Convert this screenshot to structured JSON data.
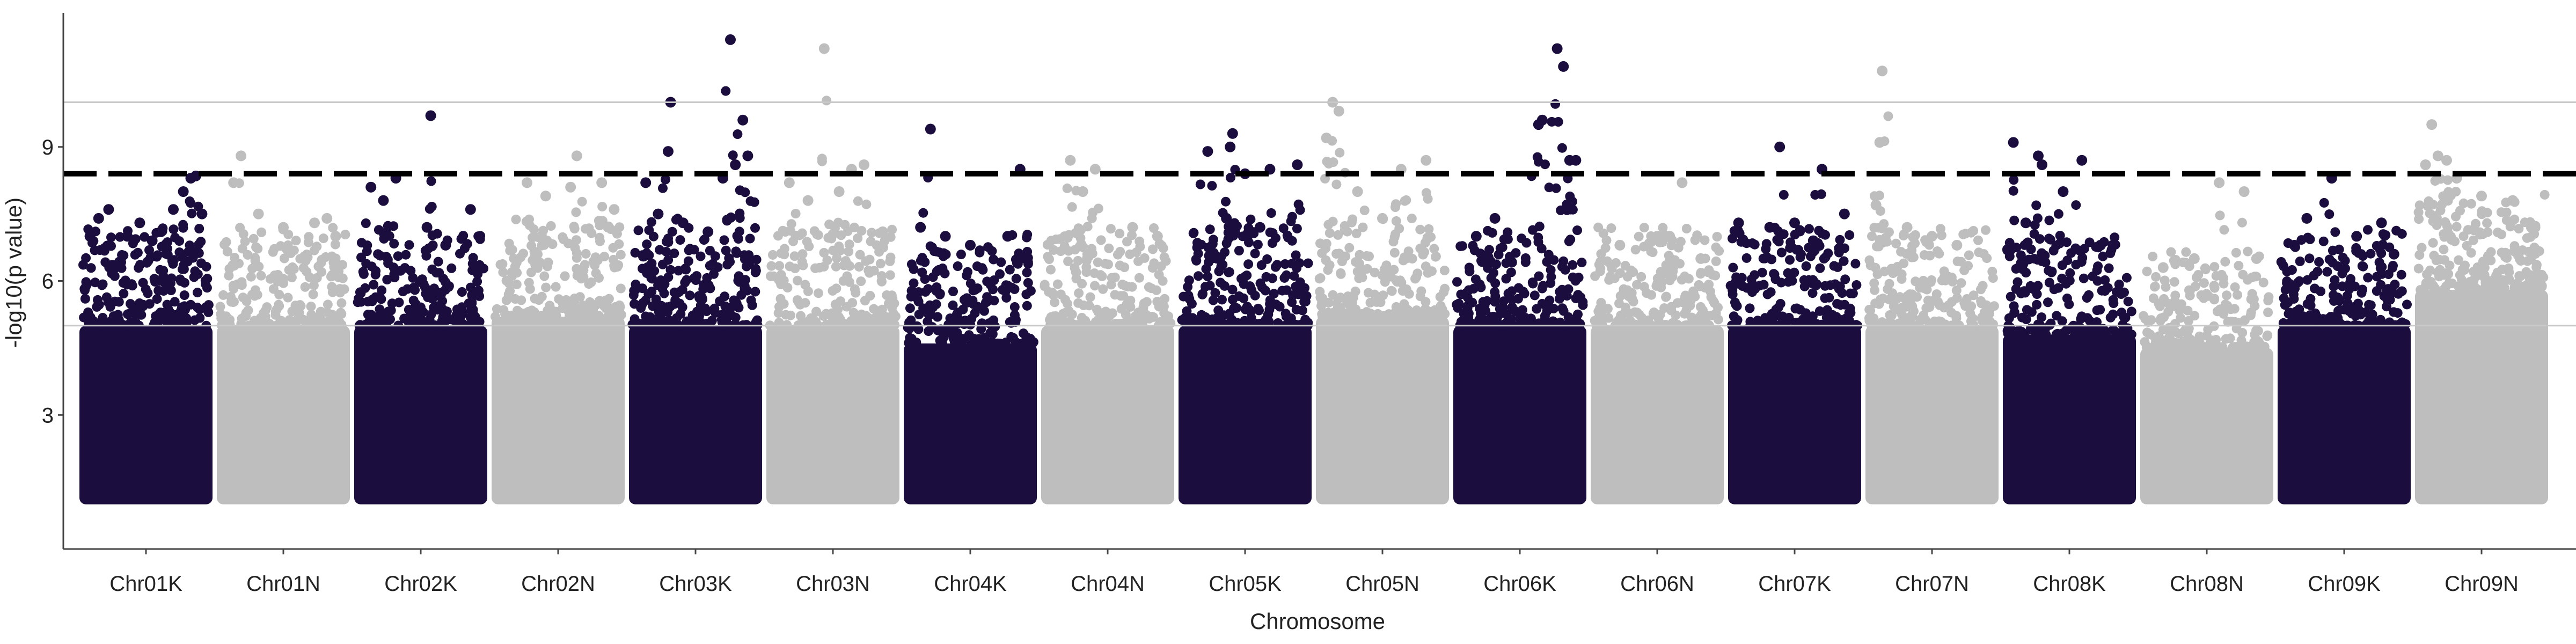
{
  "chart_data": {
    "type": "scatter",
    "title": "",
    "xlabel": "Chromosome",
    "ylabel": "-log10(p value)",
    "categories": [
      "Chr01K",
      "Chr01N",
      "Chr02K",
      "Chr02N",
      "Chr03K",
      "Chr03N",
      "Chr04K",
      "Chr04N",
      "Chr05K",
      "Chr05N",
      "Chr06K",
      "Chr06N",
      "Chr07K",
      "Chr07N",
      "Chr08K",
      "Chr08N",
      "Chr09K",
      "Chr09N"
    ],
    "yticks": [
      3,
      6,
      9
    ],
    "ylim": [
      0,
      12.0
    ],
    "grid": false,
    "colors": {
      "K": "#1b0e3f",
      "N": "#bebebe",
      "threshold": "#000000",
      "ref_line": "#c8c8c8",
      "axis": "#444444"
    },
    "reference_lines": [
      {
        "y": 10.0,
        "style": "solid",
        "color": "#c8c8c8"
      },
      {
        "y": 5.0,
        "style": "solid",
        "color": "#c8c8c8"
      },
      {
        "y": 8.4,
        "style": "dashed",
        "color": "#000000"
      }
    ],
    "series": [
      {
        "chromosome": "Chr01K",
        "color": "#1b0e3f",
        "base_top": 5.0,
        "peaks": [
          [
            0.05,
            7.0
          ],
          [
            0.12,
            7.4
          ],
          [
            0.2,
            7.6
          ],
          [
            0.35,
            7.0
          ],
          [
            0.45,
            7.3
          ],
          [
            0.55,
            6.9
          ],
          [
            0.62,
            7.1
          ],
          [
            0.72,
            7.6
          ],
          [
            0.8,
            8.0
          ],
          [
            0.86,
            8.3
          ],
          [
            0.9,
            8.35
          ],
          [
            0.95,
            7.5
          ]
        ]
      },
      {
        "chromosome": "Chr01N",
        "color": "#bebebe",
        "base_top": 5.0,
        "peaks": [
          [
            0.1,
            8.2
          ],
          [
            0.16,
            8.8
          ],
          [
            0.3,
            7.5
          ],
          [
            0.5,
            7.2
          ],
          [
            0.75,
            7.3
          ],
          [
            0.85,
            7.4
          ],
          [
            0.92,
            7.0
          ]
        ]
      },
      {
        "chromosome": "Chr02K",
        "color": "#1b0e3f",
        "base_top": 5.0,
        "peaks": [
          [
            0.1,
            8.1
          ],
          [
            0.2,
            7.8
          ],
          [
            0.3,
            8.3
          ],
          [
            0.55,
            7.2
          ],
          [
            0.58,
            9.7
          ],
          [
            0.7,
            6.8
          ],
          [
            0.9,
            7.6
          ]
        ]
      },
      {
        "chromosome": "Chr02N",
        "color": "#bebebe",
        "base_top": 5.2,
        "peaks": [
          [
            0.25,
            8.2
          ],
          [
            0.4,
            7.9
          ],
          [
            0.6,
            8.1
          ],
          [
            0.65,
            8.8
          ],
          [
            0.85,
            8.2
          ],
          [
            0.95,
            7.6
          ]
        ]
      },
      {
        "chromosome": "Chr03K",
        "color": "#1b0e3f",
        "base_top": 5.0,
        "peaks": [
          [
            0.1,
            8.2
          ],
          [
            0.2,
            7.5
          ],
          [
            0.28,
            8.9
          ],
          [
            0.3,
            10.0
          ],
          [
            0.4,
            7.3
          ],
          [
            0.6,
            7.1
          ],
          [
            0.72,
            8.3
          ],
          [
            0.78,
            11.4
          ],
          [
            0.82,
            8.6
          ],
          [
            0.88,
            9.6
          ],
          [
            0.92,
            8.8
          ]
        ]
      },
      {
        "chromosome": "Chr03N",
        "color": "#bebebe",
        "base_top": 5.0,
        "peaks": [
          [
            0.15,
            8.2
          ],
          [
            0.3,
            7.8
          ],
          [
            0.43,
            11.2
          ],
          [
            0.55,
            8.0
          ],
          [
            0.65,
            8.5
          ],
          [
            0.75,
            8.6
          ],
          [
            0.9,
            7.1
          ]
        ]
      },
      {
        "chromosome": "Chr04K",
        "color": "#1b0e3f",
        "base_top": 4.6,
        "peaks": [
          [
            0.1,
            7.2
          ],
          [
            0.18,
            9.4
          ],
          [
            0.3,
            7.0
          ],
          [
            0.5,
            6.8
          ],
          [
            0.8,
            7.0
          ],
          [
            0.9,
            8.5
          ]
        ]
      },
      {
        "chromosome": "Chr04N",
        "color": "#bebebe",
        "base_top": 5.0,
        "peaks": [
          [
            0.2,
            8.7
          ],
          [
            0.3,
            8.0
          ],
          [
            0.4,
            8.5
          ],
          [
            0.7,
            7.2
          ],
          [
            0.9,
            7.0
          ]
        ]
      },
      {
        "chromosome": "Chr05K",
        "color": "#1b0e3f",
        "base_top": 5.0,
        "peaks": [
          [
            0.2,
            8.9
          ],
          [
            0.35,
            7.4
          ],
          [
            0.38,
            9.0
          ],
          [
            0.4,
            9.3
          ],
          [
            0.5,
            8.4
          ],
          [
            0.62,
            7.2
          ],
          [
            0.7,
            8.5
          ],
          [
            0.92,
            8.6
          ]
        ]
      },
      {
        "chromosome": "Chr05N",
        "color": "#bebebe",
        "base_top": 5.2,
        "peaks": [
          [
            0.05,
            9.2
          ],
          [
            0.1,
            10.0
          ],
          [
            0.15,
            9.8
          ],
          [
            0.3,
            8.0
          ],
          [
            0.5,
            7.4
          ],
          [
            0.65,
            8.5
          ],
          [
            0.85,
            8.7
          ]
        ]
      },
      {
        "chromosome": "Chr06K",
        "color": "#1b0e3f",
        "base_top": 5.0,
        "peaks": [
          [
            0.15,
            7.0
          ],
          [
            0.3,
            7.4
          ],
          [
            0.65,
            9.5
          ],
          [
            0.68,
            9.6
          ],
          [
            0.8,
            11.2
          ],
          [
            0.85,
            10.8
          ],
          [
            0.9,
            8.7
          ],
          [
            0.95,
            8.7
          ]
        ]
      },
      {
        "chromosome": "Chr06N",
        "color": "#bebebe",
        "base_top": 5.0,
        "peaks": [
          [
            0.2,
            6.8
          ],
          [
            0.5,
            7.0
          ],
          [
            0.6,
            7.0
          ],
          [
            0.7,
            8.2
          ],
          [
            0.85,
            6.5
          ]
        ]
      },
      {
        "chromosome": "Chr07K",
        "color": "#1b0e3f",
        "base_top": 5.0,
        "peaks": [
          [
            0.05,
            7.3
          ],
          [
            0.3,
            7.2
          ],
          [
            0.38,
            9.0
          ],
          [
            0.5,
            7.3
          ],
          [
            0.65,
            6.9
          ],
          [
            0.72,
            8.5
          ],
          [
            0.9,
            7.5
          ]
        ]
      },
      {
        "chromosome": "Chr07N",
        "color": "#bebebe",
        "base_top": 5.0,
        "peaks": [
          [
            0.05,
            7.7
          ],
          [
            0.08,
            9.1
          ],
          [
            0.1,
            10.7
          ],
          [
            0.3,
            7.2
          ],
          [
            0.5,
            7.0
          ],
          [
            0.7,
            6.8
          ]
        ]
      },
      {
        "chromosome": "Chr08K",
        "color": "#1b0e3f",
        "base_top": 4.8,
        "peaks": [
          [
            0.05,
            9.1
          ],
          [
            0.15,
            7.3
          ],
          [
            0.25,
            8.8
          ],
          [
            0.28,
            8.6
          ],
          [
            0.45,
            8.0
          ],
          [
            0.6,
            8.7
          ],
          [
            0.75,
            6.8
          ]
        ]
      },
      {
        "chromosome": "Chr08N",
        "color": "#bebebe",
        "base_top": 4.5,
        "peaks": [
          [
            0.15,
            6.3
          ],
          [
            0.4,
            6.5
          ],
          [
            0.6,
            8.2
          ],
          [
            0.8,
            8.0
          ],
          [
            0.9,
            6.5
          ]
        ]
      },
      {
        "chromosome": "Chr09K",
        "color": "#1b0e3f",
        "base_top": 5.0,
        "peaks": [
          [
            0.1,
            6.8
          ],
          [
            0.2,
            7.4
          ],
          [
            0.4,
            8.3
          ],
          [
            0.6,
            7.0
          ],
          [
            0.8,
            7.3
          ],
          [
            0.9,
            6.6
          ]
        ]
      },
      {
        "chromosome": "Chr09N",
        "color": "#bebebe",
        "base_top": 5.8,
        "peaks": [
          [
            0.05,
            8.6
          ],
          [
            0.1,
            9.5
          ],
          [
            0.15,
            8.8
          ],
          [
            0.22,
            8.7
          ],
          [
            0.3,
            8.3
          ],
          [
            0.5,
            7.9
          ],
          [
            0.75,
            7.8
          ],
          [
            0.9,
            7.2
          ]
        ]
      }
    ]
  }
}
